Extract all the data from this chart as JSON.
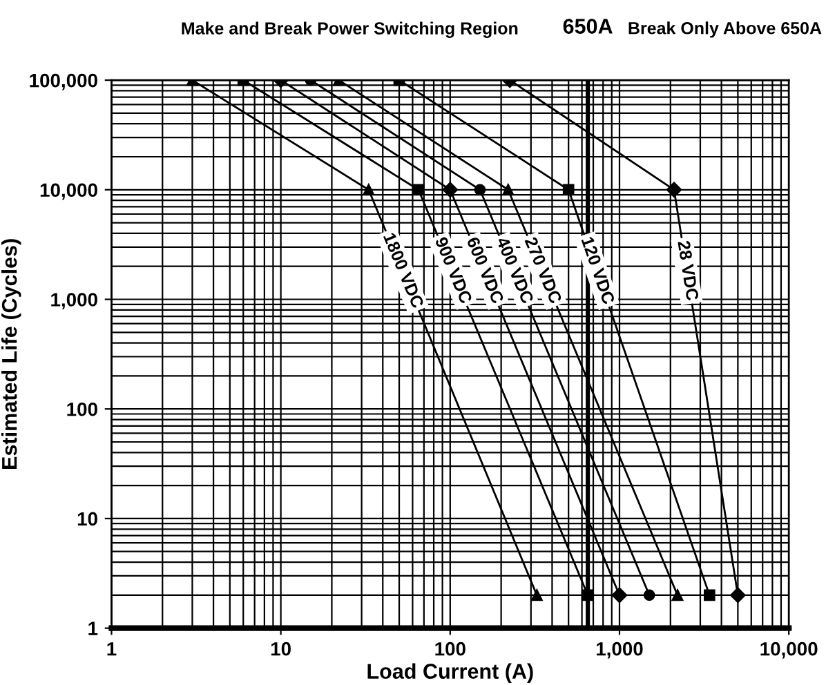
{
  "chart_data": {
    "type": "line",
    "xlabel": "Load Current (A)",
    "ylabel": "Estimated Life (Cycles)",
    "log": "xy",
    "grid": true,
    "legend": false,
    "xlim": [
      1,
      10000
    ],
    "ylim": [
      1,
      100000
    ],
    "xticks": [
      1,
      10,
      100,
      {
        "value": 1000,
        "label": "1,000"
      },
      {
        "value": 10000,
        "label": "10,000"
      }
    ],
    "yticks": [
      1,
      10,
      100,
      {
        "value": 1000,
        "label": "1,000"
      },
      {
        "value": 10000,
        "label": "10,000"
      },
      {
        "value": 100000,
        "label": "100,000"
      }
    ],
    "ref_lines": [
      {
        "axis": "x",
        "value": 650,
        "label": "650A",
        "color": "#000000"
      }
    ],
    "annotations": [
      "Make and Break Power Switching Region",
      "Break Only Above 650A"
    ],
    "series": [
      {
        "name": "1800 VDC",
        "color": "#000000",
        "marker": "triangle",
        "x": [
          3,
          33,
          325
        ],
        "values": [
          100000,
          10000,
          2
        ]
      },
      {
        "name": "900 VDC",
        "color": "#000000",
        "marker": "square",
        "x": [
          6,
          65,
          650
        ],
        "values": [
          100000,
          10000,
          2
        ]
      },
      {
        "name": "600 VDC",
        "color": "#000000",
        "marker": "diamond",
        "x": [
          10,
          100,
          1000
        ],
        "values": [
          100000,
          10000,
          2
        ]
      },
      {
        "name": "400 VDC",
        "color": "#000000",
        "marker": "circle",
        "x": [
          15,
          150,
          1500
        ],
        "values": [
          100000,
          10000,
          2
        ]
      },
      {
        "name": "270 VDC",
        "color": "#000000",
        "marker": "triangle",
        "x": [
          22,
          220,
          2200
        ],
        "values": [
          100000,
          10000,
          2
        ]
      },
      {
        "name": "120 VDC",
        "color": "#000000",
        "marker": "square",
        "x": [
          50,
          500,
          3400
        ],
        "values": [
          100000,
          10000,
          2
        ]
      },
      {
        "name": "28 VDC",
        "color": "#000000",
        "marker": "diamond",
        "x": [
          225,
          2100,
          5000
        ],
        "values": [
          100000,
          10000,
          2
        ]
      }
    ]
  }
}
